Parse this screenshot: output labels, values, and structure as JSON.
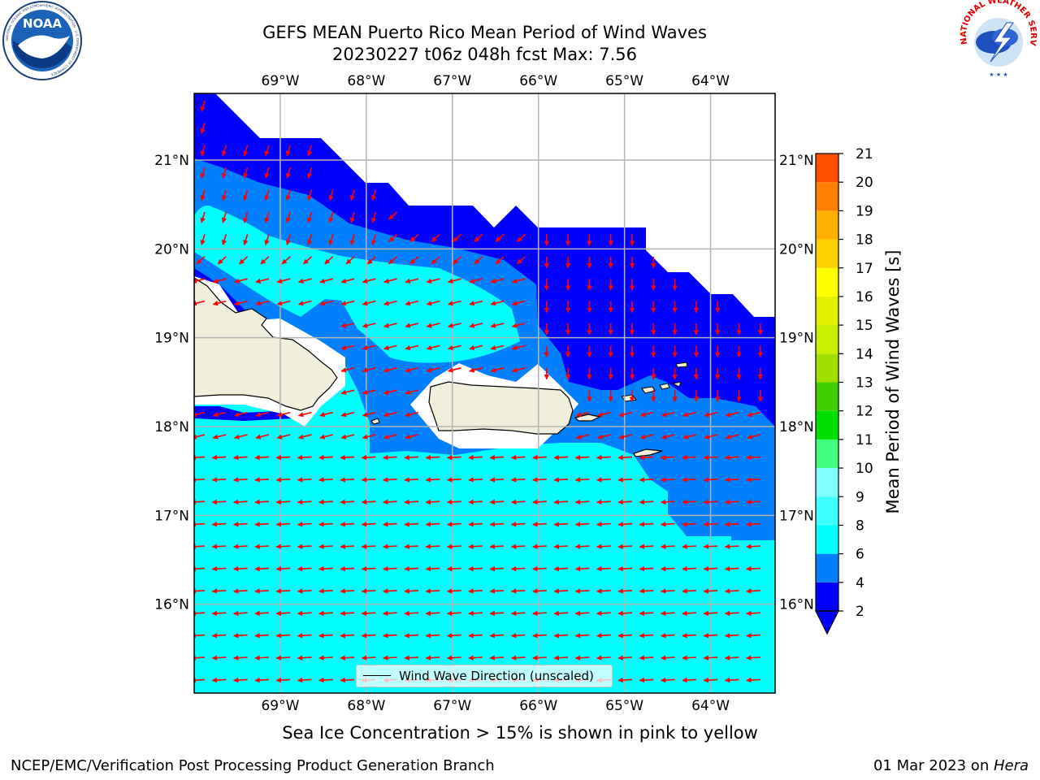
{
  "header": {
    "line1": "GEFS MEAN Puerto Rico Mean Period of Wind Waves",
    "line2": "20230227 t06z 048h fcst   Max: 7.56"
  },
  "logos": {
    "noaa_text": "NOAA",
    "noaa_ring": "NATIONAL OCEANIC AND ATMOSPHERIC ADMINISTRATION · U.S. DEPARTMENT OF COMMERCE",
    "nws_ring": "NATIONAL WEATHER SERVICE"
  },
  "map": {
    "lon_ticks": [
      "69°W",
      "68°W",
      "67°W",
      "66°W",
      "65°W",
      "64°W"
    ],
    "lon_values": [
      -69,
      -68,
      -67,
      -66,
      -65,
      -64
    ],
    "lat_ticks": [
      "21°N",
      "20°N",
      "19°N",
      "18°N",
      "17°N",
      "16°N"
    ],
    "lat_values": [
      21,
      20,
      19,
      18,
      17,
      16
    ],
    "lon_range": [
      -70,
      -63.25
    ],
    "lat_range": [
      15,
      21.75
    ],
    "legend_label": "Wind Wave Direction (unscaled)",
    "arrow_color": "#ff0000",
    "zone_colors": {
      "band_2_4": "#0000ff",
      "band_4_6": "#0080ff",
      "band_6_7": "#00ffff",
      "land": "#efefdc",
      "no_data": "#ffffff"
    }
  },
  "colorbar": {
    "label": "Mean Period of Wind Waves [s]",
    "ticks": [
      "2",
      "4",
      "6",
      "8",
      "9",
      "10",
      "11",
      "12",
      "13",
      "14",
      "15",
      "16",
      "17",
      "18",
      "19",
      "20",
      "21"
    ],
    "colors": [
      "#0000ff",
      "#0080ff",
      "#00ffff",
      "#40ffff",
      "#80ffff",
      "#40ff80",
      "#00e000",
      "#40d000",
      "#a0e000",
      "#c8f000",
      "#e0f000",
      "#ffff00",
      "#ffd000",
      "#ffb000",
      "#ff8000",
      "#ff5000",
      "#ff2000",
      "#ff0000"
    ]
  },
  "subtitle": "Sea Ice Concentration > 15% is shown in pink to yellow",
  "footer": {
    "left": "NCEP/EMC/Verification Post Processing Product Generation Branch",
    "right_date": "01 Mar 2023 on ",
    "right_host": "Hera"
  }
}
